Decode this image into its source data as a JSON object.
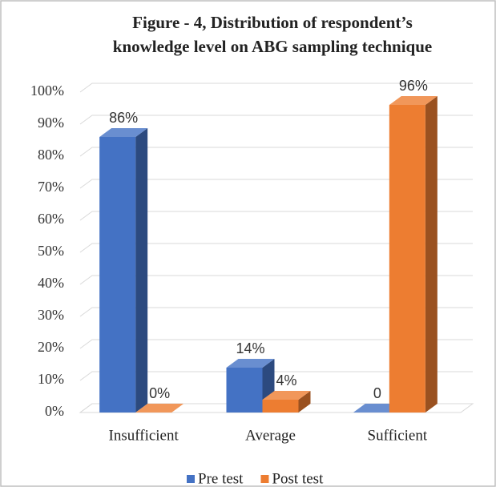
{
  "chart_data": {
    "type": "bar3d",
    "title": [
      "Figure - 4, Distribution of respondent’s",
      "knowledge level on ABG sampling technique"
    ],
    "categories": [
      "Insufficient",
      "Average",
      "Sufficient"
    ],
    "series": [
      {
        "name": "Pre test",
        "color": "#4472c4",
        "values": [
          86,
          14,
          0
        ],
        "value_labels": [
          "86%",
          "14%",
          "0"
        ]
      },
      {
        "name": "Post test",
        "color": "#ed7d31",
        "values": [
          0,
          4,
          96
        ],
        "value_labels": [
          "0%",
          "4%",
          "96%"
        ]
      }
    ],
    "ylim": [
      0,
      100
    ],
    "yticks": [
      {
        "value": 0,
        "label": "0%"
      },
      {
        "value": 10,
        "label": "10%"
      },
      {
        "value": 20,
        "label": "20%"
      },
      {
        "value": 30,
        "label": "30%"
      },
      {
        "value": 40,
        "label": "40%"
      },
      {
        "value": 50,
        "label": "50%"
      },
      {
        "value": 60,
        "label": "60%"
      },
      {
        "value": 70,
        "label": "70%"
      },
      {
        "value": 80,
        "label": "80%"
      },
      {
        "value": 90,
        "label": "90%"
      },
      {
        "value": 100,
        "label": "100%"
      }
    ],
    "grid": true,
    "legend": "bottom"
  }
}
